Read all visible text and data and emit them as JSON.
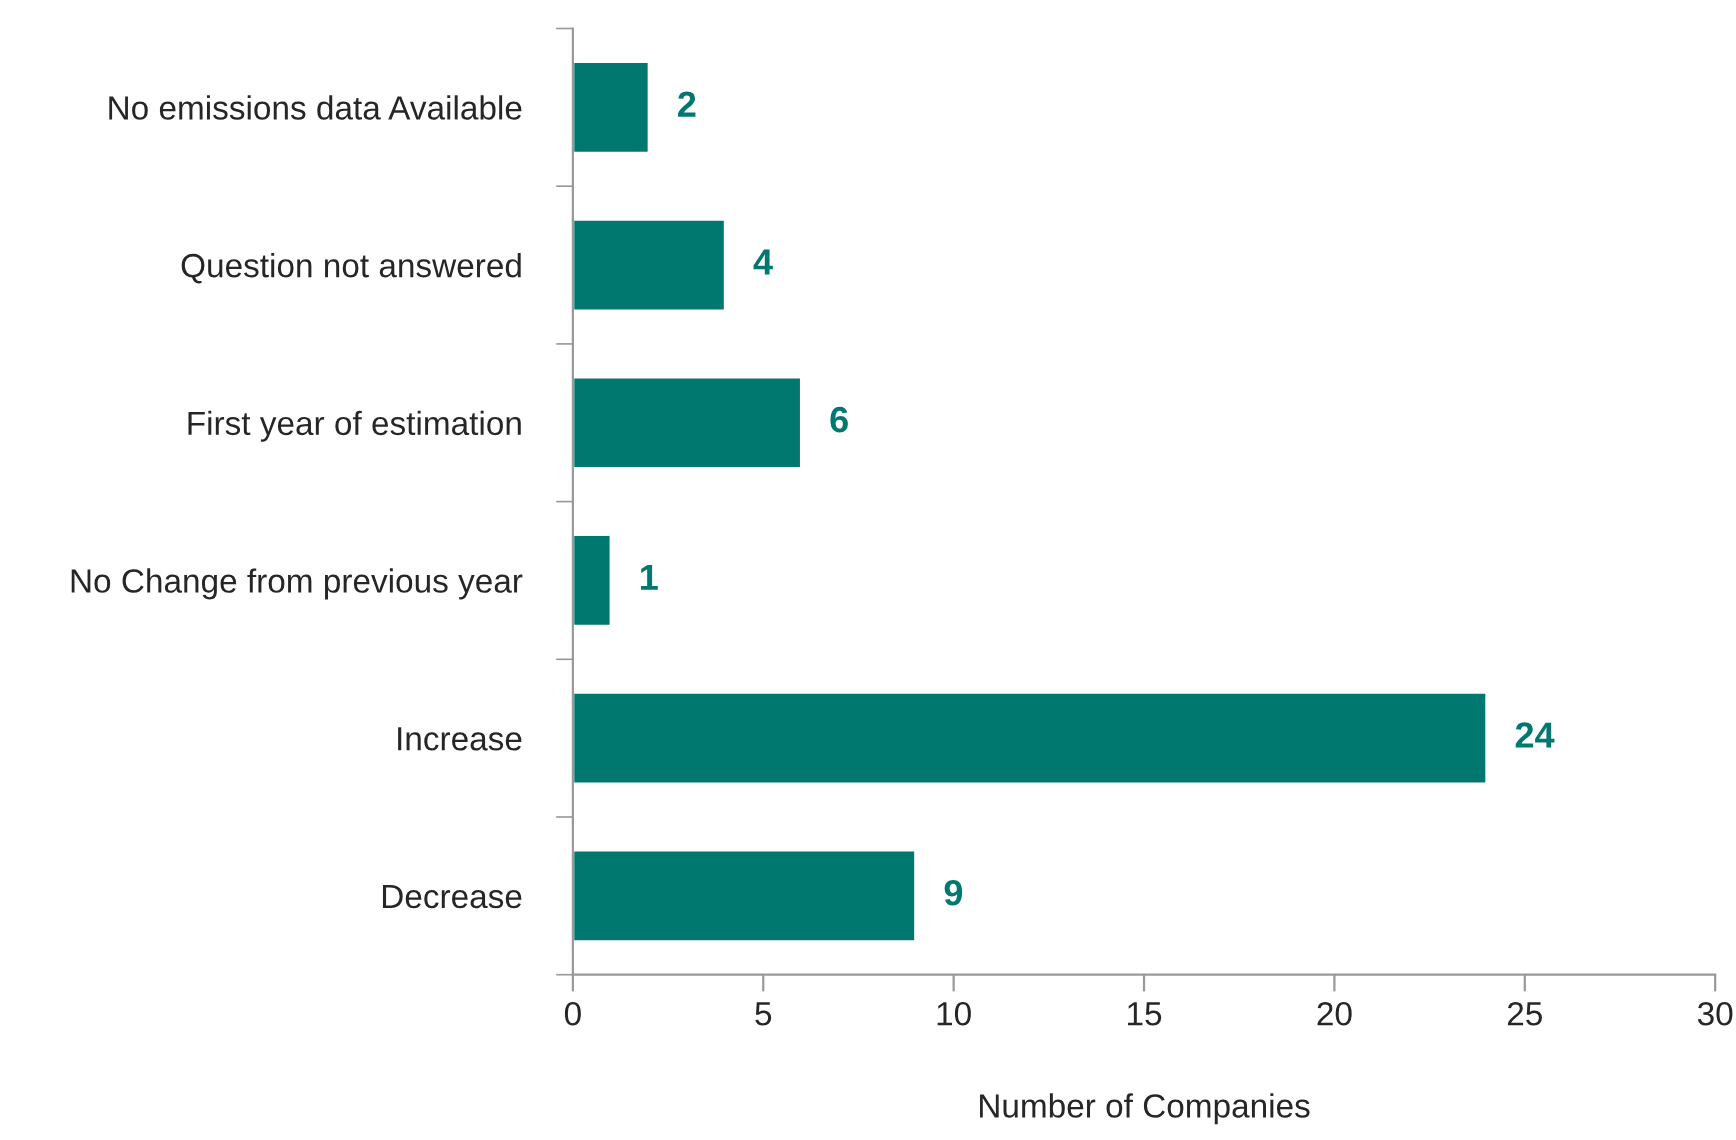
{
  "chart_data": {
    "type": "bar",
    "orientation": "horizontal",
    "xlabel": "Number of Companies",
    "categories": [
      "No emissions data Available",
      "Question not answered",
      "First year of estimation",
      "No Change from previous year",
      "Increase",
      "Decrease"
    ],
    "values": [
      2,
      4,
      6,
      1,
      24,
      9
    ],
    "color": "#00786f",
    "xlim": [
      0,
      30
    ],
    "xticks": [
      0,
      5,
      10,
      15,
      20,
      25,
      30
    ],
    "grid": false,
    "legend": false,
    "data_labels": true
  }
}
